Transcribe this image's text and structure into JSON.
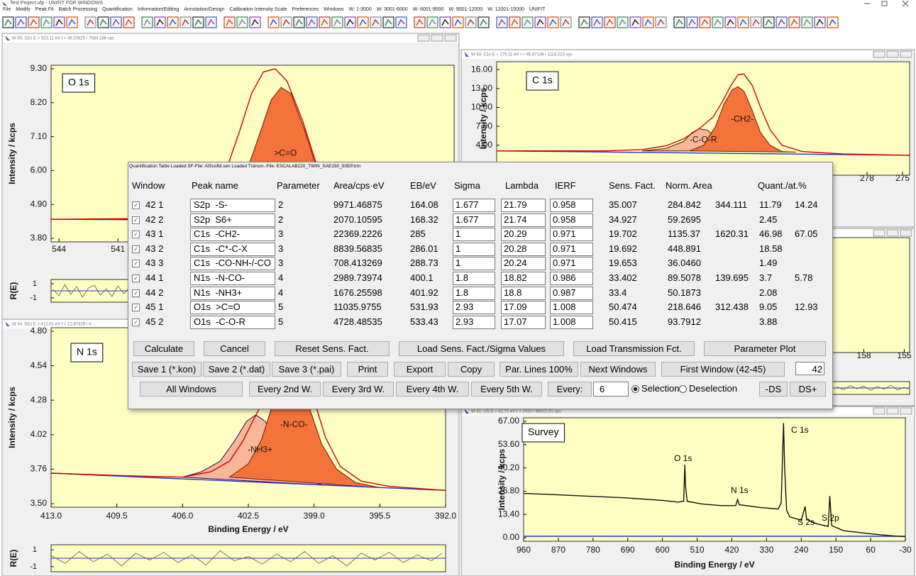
{
  "window": {
    "title": "Test Project.ufp - UNIFIT FOR WINDOWS",
    "menu": [
      "File",
      "Modify",
      "Peak Fit",
      "Batch Processing",
      "Quantification",
      "Information/Editing",
      "Annotation/Design",
      "Calibration Intensity Scale",
      "Preferences",
      "Windows",
      "W: 1-3000",
      "W: 3001-6000",
      "W: 6001-9000",
      "W: 9001-12000",
      "W: 12001-15000",
      "UNIFIT"
    ]
  },
  "panels": [
    {
      "title": "W 45: O1s  E = 523.11 eV  I = 36.20825 / 7584.188 cps",
      "label": "O 1s",
      "ylabel": "Intensity / kcps",
      "xlim": [
        544.4,
        523.9
      ],
      "ylim": [
        3.8,
        9.3
      ],
      "xticks": [
        544,
        541
      ],
      "yticks": [
        {
          "value": 9.3,
          "label": "9.30"
        },
        {
          "value": 8.2,
          "label": "8.20"
        },
        {
          "value": 7.1,
          "label": "7.10"
        },
        {
          "value": 6,
          "label": "6.00"
        },
        {
          "value": 4.9,
          "label": "4.90"
        },
        {
          "value": 3.8,
          "label": "3.80"
        }
      ],
      "curves": [
        {
          "fill": "#f4733a",
          "color": "#6b1a00",
          "label": ">C=O",
          "x": [
            536,
            535,
            534,
            533.2,
            532.7,
            532.2,
            531.5,
            530.5,
            529.5,
            528.5
          ],
          "values": [
            4.42,
            5.0,
            6.8,
            8.3,
            8.7,
            8.5,
            7.3,
            5.3,
            4.5,
            4.4
          ]
        },
        {
          "color": "#2233cc",
          "x": [
            544.4,
            523.9
          ],
          "values": [
            4.42,
            4.35
          ]
        },
        {
          "color": "#d00000",
          "x": [
            544.4,
            540,
            538,
            536.5,
            535.5,
            534.8,
            534.2,
            533.6,
            533,
            532.4,
            531.6,
            530.8,
            530,
            528.5,
            526,
            523.9
          ],
          "values": [
            4.42,
            4.44,
            4.55,
            5.0,
            6.0,
            7.3,
            8.5,
            9.2,
            9.3,
            8.9,
            7.6,
            6.0,
            5.0,
            4.5,
            4.4,
            4.38
          ]
        }
      ],
      "residual": {
        "ylabel": "R(E)",
        "ylim": [
          -1.6,
          1.6
        ],
        "yticks": [
          1,
          -1
        ],
        "x": [
          544.3,
          544,
          543.7,
          543.4,
          543.1,
          542.8,
          542.5,
          542.2,
          541.9,
          541.6,
          541.3,
          541,
          540.7,
          540.4
        ],
        "values": [
          0.2,
          -0.7,
          0.9,
          -0.5,
          0.6,
          -0.9,
          0.4,
          0.8,
          -0.6,
          0.3,
          -0.8,
          0.7,
          -0.4,
          0.5
        ]
      }
    },
    {
      "title": "W 43: C1s  E = 275.11 eV  I = 65.67138 / 1114.213 cps",
      "label": "C 1s",
      "ylabel": "Intensity / kcps",
      "xlim": [
        309.3,
        274.4
      ],
      "ylim": [
        -0.2,
        16.7
      ],
      "xticks": [
        278,
        275
      ],
      "yticks": [
        {
          "value": 16,
          "label": "16.00"
        },
        {
          "value": 13,
          "label": "13.00"
        },
        {
          "value": 10,
          "label": "10.00"
        },
        {
          "value": 7,
          "label": "7.00"
        },
        {
          "value": 4,
          "label": "4.00"
        }
      ],
      "curves": [
        {
          "fill": "#f9b79a",
          "color": "#5a1a00",
          "label": "-C-O-R",
          "x": [
            297,
            295,
            293.5,
            292.8,
            292.2,
            291.5,
            290.7,
            289.7,
            288.7
          ],
          "values": [
            3.1,
            3.5,
            4.6,
            6.0,
            6.6,
            6.4,
            5.2,
            3.8,
            3.1
          ]
        },
        {
          "fill": "#f4733a",
          "color": "#6b1a00",
          "label": "-CH2-",
          "x": [
            293,
            291.8,
            290.8,
            290.1,
            289.4,
            288.9,
            288.4,
            287.7,
            287,
            286.2,
            285.2,
            284
          ],
          "values": [
            3.1,
            4.0,
            7.0,
            10.5,
            12.8,
            13.3,
            12.6,
            9.5,
            6.0,
            4.0,
            3.0,
            2.9
          ]
        },
        {
          "color": "#2233cc",
          "x": [
            309.3,
            274.4
          ],
          "values": [
            3.1,
            2.4
          ]
        },
        {
          "color": "#d00000",
          "x": [
            309.3,
            300,
            297,
            295,
            293.5,
            292.2,
            291,
            290.2,
            289.5,
            288.9,
            288.4,
            287.7,
            287,
            286.2,
            285.2,
            283.5,
            280,
            274.4
          ],
          "values": [
            3.1,
            3.1,
            3.3,
            3.9,
            5.0,
            6.6,
            8.5,
            11.0,
            13.5,
            15.2,
            15.3,
            13.5,
            10.0,
            6.5,
            4.0,
            3.0,
            2.6,
            2.4
          ]
        }
      ]
    },
    {
      "xlim": [
        185.3,
        154.6
      ],
      "xticks": [
        158,
        155
      ],
      "residual": {
        "ylim": [
          -1.6,
          1.6
        ],
        "x": [
          160,
          159.5,
          159,
          158.5,
          158,
          157.5,
          157,
          156.5,
          156,
          155.5,
          155,
          154.7
        ],
        "values": [
          0.3,
          -0.4,
          0.6,
          -0.2,
          0.5,
          -0.6,
          0.4,
          -0.3,
          0.7,
          -0.5,
          0.2,
          -0.3
        ]
      }
    },
    {
      "title": "W 44: N1s  E = 412.01 eV  I = 12.87329 / 4",
      "label": "N 1s",
      "ylabel": "Intensity / kcps",
      "xlabel": "Binding Energy / eV",
      "xlim": [
        413,
        392
      ],
      "ylim": [
        3.5,
        4.8
      ],
      "xticks": [
        {
          "value": 413,
          "label": "413.0"
        },
        409.5,
        {
          "value": 406,
          "label": "406.0"
        },
        402.5,
        {
          "value": 399,
          "label": "399.0"
        },
        395.5,
        {
          "value": 392,
          "label": "392.0"
        }
      ],
      "yticks": [
        {
          "value": 4.8,
          "label": "4.80"
        },
        4.54,
        4.28,
        4.02,
        3.76,
        {
          "value": 3.5,
          "label": "3.50"
        }
      ],
      "curves": [
        {
          "fill": "#f9b79a",
          "color": "#2a0a60",
          "label": "-NH3+",
          "x": [
            406,
            405,
            404,
            403.2,
            402.6,
            402.1,
            401.6,
            401,
            400.3,
            399.5,
            398.5
          ],
          "values": [
            3.7,
            3.74,
            3.82,
            3.98,
            4.12,
            4.17,
            4.12,
            3.95,
            3.78,
            3.68,
            3.64
          ]
        },
        {
          "fill": "#f4733a",
          "color": "#6b1a00",
          "label": "-N-CO-",
          "x": [
            403.5,
            402.5,
            401.8,
            401.2,
            400.7,
            400.3,
            399.8,
            399.2,
            398.6,
            397.8,
            396.8,
            395.5
          ],
          "values": [
            3.7,
            3.8,
            3.98,
            4.25,
            4.5,
            4.57,
            4.5,
            4.2,
            3.95,
            3.76,
            3.66,
            3.62
          ]
        },
        {
          "color": "#2233cc",
          "x": [
            413,
            392
          ],
          "values": [
            3.73,
            3.6
          ]
        },
        {
          "color": "#d00000",
          "x": [
            413,
            409,
            406,
            404.5,
            403.5,
            402.8,
            402.2,
            401.6,
            401,
            400.5,
            400.1,
            399.6,
            399,
            398.4,
            397.6,
            396.5,
            395,
            392
          ],
          "values": [
            3.73,
            3.71,
            3.7,
            3.74,
            3.82,
            3.97,
            4.14,
            4.3,
            4.48,
            4.6,
            4.62,
            4.55,
            4.28,
            4.0,
            3.78,
            3.67,
            3.63,
            3.6
          ]
        }
      ],
      "residual": {
        "ylabel": "R(E)",
        "ylim": [
          -1.6,
          1.6
        ],
        "yticks": [
          1,
          -1
        ],
        "x": [
          413,
          412.25,
          411.5,
          410.75,
          410,
          409.25,
          408.5,
          407.75,
          407,
          406.25,
          405.5,
          404.75,
          404,
          403.25,
          402.5,
          401.75,
          401,
          400.25,
          399.5,
          398.75,
          398,
          397.25,
          396.5,
          395.75,
          395,
          394.25,
          393.5,
          392.75,
          392.2
        ],
        "values": [
          0.3,
          -0.6,
          0.8,
          -0.4,
          0.5,
          -0.9,
          0.6,
          -0.2,
          0.7,
          -0.5,
          0.4,
          -0.8,
          0.9,
          -0.3,
          0.2,
          -0.7,
          0.5,
          -0.4,
          0.8,
          -0.6,
          0.3,
          -0.9,
          0.6,
          -0.2,
          0.7,
          -0.5,
          0.4,
          -0.3,
          0.6
        ]
      }
    },
    {
      "title": "W 41: US  E = 42.71 eV  I = 2010 / 66022.91 cps",
      "label": "Survey",
      "ylabel": "Intensity / kcps",
      "xlabel": "Binding Energy / eV",
      "xlim": [
        960,
        -30
      ],
      "ylim": [
        0,
        67
      ],
      "xticks": [
        960,
        870,
        780,
        690,
        600,
        510,
        420,
        330,
        240,
        150,
        60,
        -30
      ],
      "yticks": [
        {
          "value": 67,
          "label": "67.00"
        },
        {
          "value": 53.6,
          "label": "53.60"
        },
        {
          "value": 40.2,
          "label": "40.20"
        },
        {
          "value": 26.8,
          "label": "26.80"
        },
        {
          "value": 13.4,
          "label": "13.40"
        },
        {
          "value": 0,
          "label": "0.00"
        }
      ],
      "annotations": [
        "O 1s",
        "N 1s",
        "C 1s",
        "S 2s",
        "S 2p"
      ],
      "curves": [
        {
          "color": "#2233cc",
          "x": [
            960,
            -30
          ],
          "values": [
            0.8,
            0.8
          ]
        },
        {
          "color": "#111111",
          "x": [
            960,
            900,
            800,
            700,
            600,
            560,
            545,
            542,
            540,
            536,
            500,
            450,
            410,
            405,
            401,
            350,
            300,
            292,
            286,
            283,
            278,
            270,
            240,
            230,
            226,
            200,
            170,
            166,
            161,
            130,
            50,
            0,
            -30
          ],
          "values": [
            25.5,
            25,
            24,
            23,
            21.5,
            20.5,
            21,
            42,
            30,
            21,
            19.5,
            18.5,
            18.5,
            22,
            19,
            17.5,
            16.5,
            20,
            66,
            40,
            16,
            12,
            10,
            18,
            10.5,
            8,
            6.5,
            24,
            7,
            4,
            2,
            1,
            0.6
          ]
        }
      ]
    }
  ],
  "dialog": {
    "title": "Quantification Table  Loaded SF-File: AlScofld.sen  Loaded Transm.-File: ESCALAB220_TWIN_SAE150_50EP.trm",
    "headers": [
      "Window",
      "Peak name",
      "Parameter",
      "Area/cps·eV",
      "EB/eV",
      "Sigma",
      "Lambda",
      "IERF",
      "Sens. Fact.",
      "Norm. Area",
      "Quant./at.%"
    ],
    "rows": [
      {
        "window": "42 1",
        "peak": "S2p  -S-",
        "parameter": "2",
        "area": "9971.46875",
        "eb": "164.08",
        "sigma": "1.677",
        "lambda": "21.79",
        "ierf": "0.958",
        "sens": "35.007",
        "norm": "284.842",
        "norm_sum": "344.111",
        "quant": "11.79",
        "quant_sum": "14.24"
      },
      {
        "window": "42 2",
        "peak": "S2p  S6+",
        "parameter": "2",
        "area": "2070.10595",
        "eb": "168.32",
        "sigma": "1.677",
        "lambda": "21.74",
        "ierf": "0.958",
        "sens": "34.927",
        "norm": "59.2695",
        "quant": "2.45"
      },
      {
        "window": "43 1",
        "peak": "C1s  -CH2-",
        "parameter": "3",
        "area": "22369.2226",
        "eb": "285",
        "sigma": "1",
        "lambda": "20.29",
        "ierf": "0.971",
        "sens": "19.702",
        "norm": "1135.37",
        "norm_sum": "1620.31",
        "quant": "46.98",
        "quant_sum": "67.05"
      },
      {
        "window": "43 2",
        "peak": "C1s  -C*-C-X",
        "parameter": "3",
        "area": "8839.56835",
        "eb": "286.01",
        "sigma": "1",
        "lambda": "20.28",
        "ierf": "0.971",
        "sens": "19.692",
        "norm": "448.891",
        "quant": "18.58"
      },
      {
        "window": "43 3",
        "peak": "C1s  -CO-NH-/-CO",
        "parameter": "3",
        "area": "708.413269",
        "eb": "288.73",
        "sigma": "1",
        "lambda": "20.24",
        "ierf": "0.971",
        "sens": "19.653",
        "norm": "36.0460",
        "quant": "1.49"
      },
      {
        "window": "44 1",
        "peak": "N1s  -N-CO-",
        "parameter": "4",
        "area": "2989.73974",
        "eb": "400.1",
        "sigma": "1.8",
        "lambda": "18.82",
        "ierf": "0.986",
        "sens": "33.402",
        "norm": "89.5078",
        "norm_sum": "139.695",
        "quant": "3.7",
        "quant_sum": "5.78"
      },
      {
        "window": "44 2",
        "peak": "N1s  -NH3+",
        "parameter": "4",
        "area": "1676.25598",
        "eb": "401.92",
        "sigma": "1.8",
        "lambda": "18.8",
        "ierf": "0.987",
        "sens": "33.4",
        "norm": "50.1873",
        "quant": "2.08"
      },
      {
        "window": "45 1",
        "peak": "O1s  >C=O",
        "parameter": "5",
        "area": "11035.9755",
        "eb": "531.93",
        "sigma": "2.93",
        "lambda": "17.09",
        "ierf": "1.008",
        "sens": "50.474",
        "norm": "218.646",
        "norm_sum": "312.438",
        "quant": "9.05",
        "quant_sum": "12.93"
      },
      {
        "window": "45 2",
        "peak": "O1s  -C-O-R",
        "parameter": "5",
        "area": "4728.48535",
        "eb": "533.43",
        "sigma": "2.93",
        "lambda": "17.07",
        "ierf": "1.008",
        "sens": "50.415",
        "norm": "93.7912",
        "quant": "3.88"
      }
    ],
    "buttons": [
      [
        "Calculate",
        "Cancel",
        "Reset Sens. Fact.",
        "Load Sens. Fact./Sigma Values",
        "Load Transmission Fct.",
        "Parameter Plot"
      ],
      [
        "Save 1 (*.kon)",
        "Save 2 (*.dat)",
        "Save 3 (*.pai)",
        "Print",
        "Export",
        "Copy",
        "Par. Lines 100%",
        "Next Windows",
        "First Window (42-45)"
      ],
      [
        "All Windows",
        "Every 2nd W.",
        "Every 3rd W.",
        "Every 4th W.",
        "Every 5th W.",
        "Every:",
        "-DS",
        "DS+"
      ]
    ],
    "first_window": "42",
    "every_input": "6",
    "radio": [
      "Selection",
      "Deselection"
    ],
    "radio_selected": 0
  }
}
